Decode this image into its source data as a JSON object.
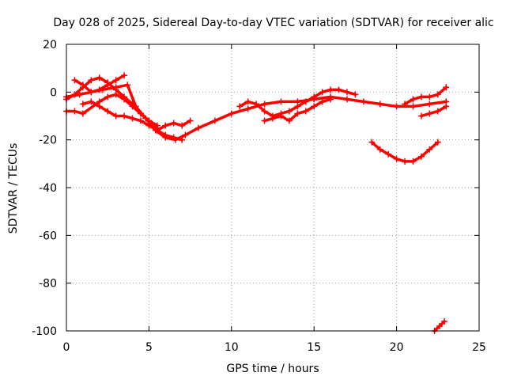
{
  "chart_data": {
    "type": "scatter",
    "title": "Day 028 of 2025, Sidereal Day-to-day VTEC variation (SDTVAR) for receiver alic",
    "xlabel": "GPS time / hours",
    "ylabel": "SDTVAR / TECUs",
    "xlim": [
      0,
      25
    ],
    "ylim": [
      -100,
      20
    ],
    "xticks": [
      0,
      5,
      10,
      15,
      20,
      25
    ],
    "yticks": [
      -100,
      -80,
      -60,
      -40,
      -20,
      0,
      20
    ],
    "xtick_labels": [
      "0",
      "5",
      "10",
      "15",
      "20",
      "25"
    ],
    "ytick_labels": [
      "-100",
      "-80",
      "-60",
      "-40",
      "-20",
      "0",
      "20"
    ],
    "grid": true,
    "marker_color": "#ff0000",
    "series": [
      {
        "x": [
          0.0,
          0.8,
          1.5,
          2.2,
          3.0,
          3.7,
          4.2,
          4.8,
          5.4,
          6.0,
          6.6,
          7.2,
          8.0,
          9.0,
          10.0,
          11.0,
          12.0,
          13.0,
          14.0,
          15.0,
          16.0,
          17.0,
          18.0,
          19.0,
          20.0,
          21.0,
          22.0,
          23.0
        ],
        "y": [
          -2,
          -1,
          0,
          1,
          2,
          3,
          -6,
          -11,
          -16,
          -19,
          -20,
          -18,
          -15,
          -12,
          -9,
          -7,
          -5,
          -4,
          -4,
          -3,
          -2,
          -3,
          -4,
          -5,
          -6,
          -6,
          -5,
          -4
        ]
      },
      {
        "x": [
          0.5,
          1.0,
          1.5,
          2.0,
          2.5,
          3.0,
          3.5
        ],
        "y": [
          5,
          3,
          0,
          1,
          3,
          5,
          7
        ]
      },
      {
        "x": [
          0.0,
          0.5,
          1.0,
          1.5,
          2.0,
          2.5,
          3.0,
          3.5,
          4.0,
          4.5,
          5.0,
          5.5
        ],
        "y": [
          -3,
          -1,
          2,
          5,
          6,
          4,
          1,
          -2,
          -5,
          -9,
          -12,
          -15
        ]
      },
      {
        "x": [
          0.0,
          0.5,
          1.0,
          2.0,
          2.5,
          3.0,
          3.5,
          4.0,
          4.5,
          5.0,
          5.5
        ],
        "y": [
          -8,
          -8,
          -9,
          -4,
          -2,
          -1,
          -3,
          -6,
          -9,
          -12,
          -14
        ]
      },
      {
        "x": [
          1.0,
          1.5,
          2.0,
          2.5,
          3.0,
          3.5,
          4.0,
          4.5,
          5.0,
          5.5,
          6.0,
          6.5,
          7.0
        ],
        "y": [
          -5,
          -4,
          -6,
          -8,
          -10,
          -10,
          -11,
          -12,
          -14,
          -16,
          -18,
          -19,
          -20
        ]
      },
      {
        "x": [
          5.5,
          6.0,
          6.5,
          7.0,
          7.5
        ],
        "y": [
          -16,
          -14,
          -13,
          -14,
          -12
        ]
      },
      {
        "x": [
          10.5,
          11.0,
          11.5,
          12.0,
          12.5,
          13.0,
          13.5,
          14.0,
          14.5,
          15.0,
          15.5,
          16.0,
          16.5,
          17.0,
          17.5
        ],
        "y": [
          -6,
          -4,
          -5,
          -8,
          -10,
          -9,
          -8,
          -6,
          -4,
          -2,
          0,
          1,
          1,
          0,
          -1
        ]
      },
      {
        "x": [
          12.0,
          12.5,
          13.0,
          13.5,
          14.0,
          14.5,
          15.0,
          15.5,
          16.0
        ],
        "y": [
          -12,
          -11,
          -10,
          -12,
          -9,
          -8,
          -6,
          -4,
          -3
        ]
      },
      {
        "x": [
          18.5,
          19.0,
          19.5,
          20.0,
          20.5,
          21.0,
          21.5,
          22.0,
          22.5
        ],
        "y": [
          -21,
          -24,
          -26,
          -28,
          -29,
          -29,
          -27,
          -24,
          -21
        ]
      },
      {
        "x": [
          20.5,
          21.0,
          21.5,
          22.0,
          22.5,
          23.0
        ],
        "y": [
          -5,
          -3,
          -2,
          -2,
          -1,
          2
        ]
      },
      {
        "x": [
          21.5,
          22.0,
          22.5,
          23.0
        ],
        "y": [
          -10,
          -9,
          -8,
          -6
        ]
      },
      {
        "x": [
          22.3,
          22.6,
          22.9
        ],
        "y": [
          -100,
          -98,
          -96
        ]
      }
    ]
  }
}
